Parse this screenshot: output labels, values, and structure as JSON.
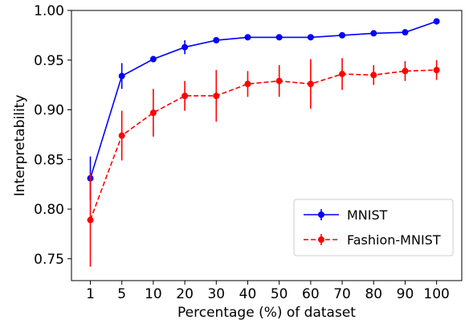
{
  "chart_data": {
    "type": "line",
    "xlabel": "Percentage (%) of dataset",
    "ylabel": "Interpretability",
    "categories": [
      "1",
      "5",
      "10",
      "20",
      "30",
      "40",
      "50",
      "60",
      "70",
      "80",
      "90",
      "100"
    ],
    "ylim": [
      0.728,
      1.0
    ],
    "yticks": [
      "0.75",
      "0.80",
      "0.85",
      "0.90",
      "0.95",
      "1.00"
    ],
    "grid": false,
    "legend_position": "lower-right",
    "series": [
      {
        "name": "MNIST",
        "color": "#0000ff",
        "line_style": "solid",
        "marker": "circle",
        "values": [
          0.831,
          0.934,
          0.951,
          0.963,
          0.97,
          0.973,
          0.973,
          0.973,
          0.975,
          0.977,
          0.978,
          0.989
        ],
        "errors": [
          0.022,
          0.013,
          0.003,
          0.007,
          0.002,
          0.002,
          0.002,
          0.002,
          0.002,
          0.002,
          0.002,
          0.002
        ]
      },
      {
        "name": "Fashion-MNIST",
        "color": "#ff0000",
        "line_style": "dashed",
        "marker": "circle",
        "values": [
          0.789,
          0.874,
          0.897,
          0.914,
          0.914,
          0.926,
          0.929,
          0.926,
          0.936,
          0.935,
          0.939,
          0.94
        ],
        "errors": [
          0.047,
          0.025,
          0.024,
          0.015,
          0.026,
          0.013,
          0.016,
          0.025,
          0.016,
          0.01,
          0.01,
          0.01
        ]
      }
    ]
  }
}
